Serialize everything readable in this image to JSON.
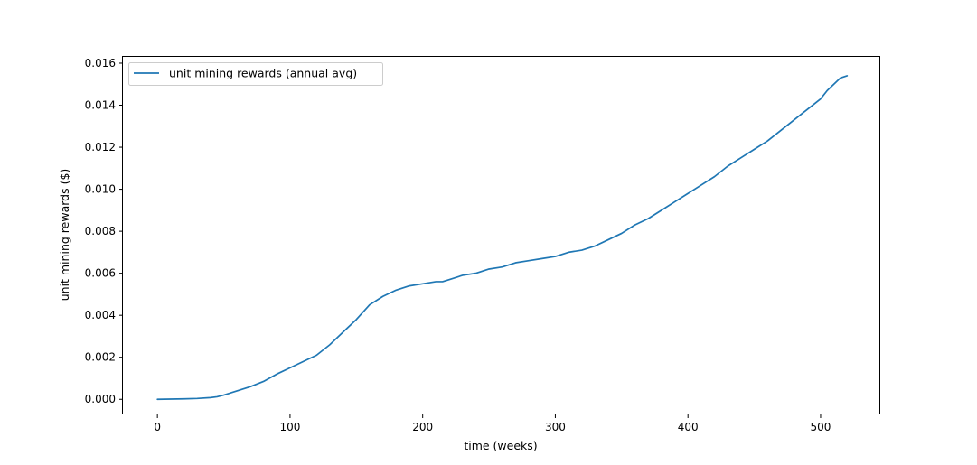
{
  "chart_data": {
    "type": "line",
    "title": "",
    "xlabel": "time (weeks)",
    "ylabel": "unit mining rewards ($)",
    "xlim": [
      -26,
      545
    ],
    "ylim": [
      -0.00072,
      0.0163
    ],
    "xticks": [
      0,
      100,
      200,
      300,
      400,
      500
    ],
    "yticks": [
      0.0,
      0.002,
      0.004,
      0.006,
      0.008,
      0.01,
      0.012,
      0.014,
      0.016
    ],
    "ytick_decimals": 3,
    "grid": false,
    "legend_position": "top-left",
    "series": [
      {
        "name": "unit mining rewards (annual avg)",
        "color": "#1f77b4",
        "x": [
          0,
          10,
          20,
          30,
          40,
          45,
          50,
          60,
          70,
          80,
          90,
          100,
          110,
          120,
          130,
          140,
          150,
          160,
          170,
          180,
          190,
          200,
          210,
          215,
          220,
          230,
          240,
          250,
          260,
          270,
          280,
          290,
          300,
          310,
          320,
          330,
          340,
          350,
          360,
          370,
          380,
          390,
          400,
          410,
          420,
          430,
          440,
          450,
          460,
          470,
          480,
          490,
          500,
          505,
          510,
          515,
          520
        ],
        "y": [
          0.0,
          1e-05,
          2e-05,
          4e-05,
          8e-05,
          0.00012,
          0.0002,
          0.0004,
          0.0006,
          0.00085,
          0.0012,
          0.0015,
          0.0018,
          0.0021,
          0.0026,
          0.0032,
          0.0038,
          0.0045,
          0.0049,
          0.0052,
          0.0054,
          0.0055,
          0.0056,
          0.0056,
          0.0057,
          0.0059,
          0.006,
          0.0062,
          0.0063,
          0.0065,
          0.0066,
          0.0067,
          0.0068,
          0.007,
          0.0071,
          0.0073,
          0.0076,
          0.0079,
          0.0083,
          0.0086,
          0.009,
          0.0094,
          0.0098,
          0.0102,
          0.0106,
          0.0111,
          0.0115,
          0.0119,
          0.0123,
          0.0128,
          0.0133,
          0.0138,
          0.0143,
          0.0147,
          0.015,
          0.0153,
          0.0154
        ]
      }
    ]
  }
}
